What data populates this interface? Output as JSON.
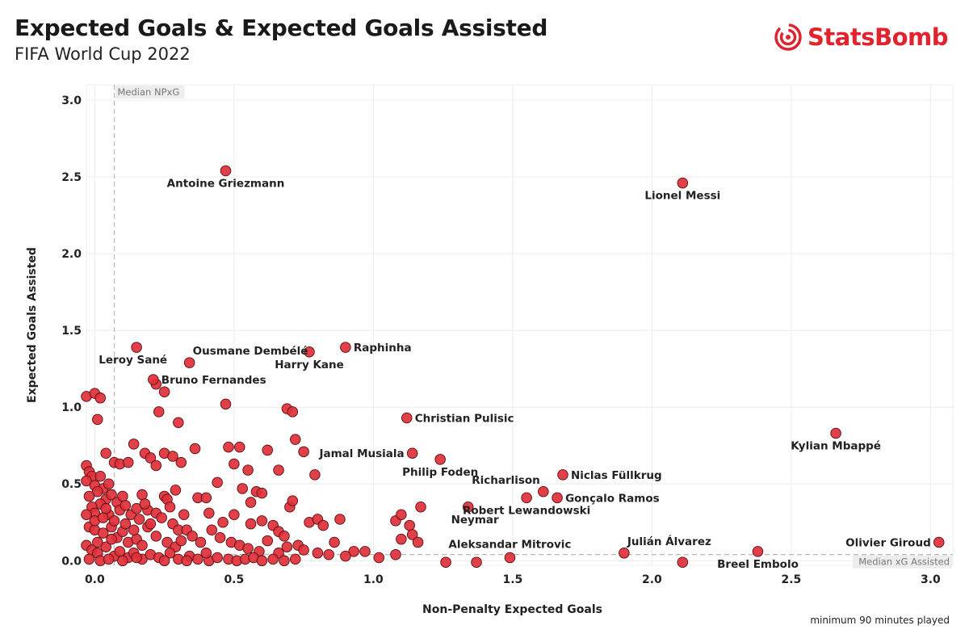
{
  "header": {
    "title": "Expected Goals & Expected Goals Assisted",
    "subtitle": "FIFA World Cup 2022"
  },
  "brand": {
    "name": "StatsBomb",
    "icon": "statsbomb-target-icon",
    "color": "#e1232e"
  },
  "footnote": "minimum 90 minutes played",
  "colors": {
    "point_fill": "#e0303a",
    "point_stroke": "#5a0d12",
    "grid": "#ececec",
    "reference": "#bdbdbd"
  },
  "chart_data": {
    "type": "scatter",
    "title": "Expected Goals & Expected Goals Assisted",
    "subtitle": "FIFA World Cup 2022",
    "xlabel": "Non-Penalty Expected Goals",
    "ylabel": "Expected Goals Assisted",
    "xlim": [
      -0.03,
      3.08
    ],
    "ylim": [
      -0.03,
      3.1
    ],
    "xticks": [
      "0.0",
      "0.5",
      "1.0",
      "1.5",
      "2.0",
      "2.5",
      "3.0"
    ],
    "yticks": [
      "0.0",
      "0.5",
      "1.0",
      "1.5",
      "2.0",
      "2.5",
      "3.0"
    ],
    "grid": true,
    "reference_lines": [
      {
        "axis": "x",
        "value": 0.07,
        "label": "Median NPxG"
      },
      {
        "axis": "y",
        "value": 0.04,
        "label": "Median xG Assisted"
      }
    ],
    "labeled_points": [
      {
        "name": "Antoine Griezmann",
        "x": 0.47,
        "y": 2.54,
        "pos": "below"
      },
      {
        "name": "Lionel Messi",
        "x": 2.11,
        "y": 2.46,
        "pos": "below"
      },
      {
        "name": "Leroy Sané",
        "x": 0.15,
        "y": 1.39,
        "pos": "below-left"
      },
      {
        "name": "Ousmane Dembélé",
        "x": 0.34,
        "y": 1.29,
        "pos": "above-right"
      },
      {
        "name": "Harry Kane",
        "x": 0.77,
        "y": 1.36,
        "pos": "below"
      },
      {
        "name": "Raphinha",
        "x": 0.9,
        "y": 1.39,
        "pos": "right"
      },
      {
        "name": "Bruno Fernandes",
        "x": 0.21,
        "y": 1.18,
        "pos": "right"
      },
      {
        "name": "Christian Pulisic",
        "x": 1.12,
        "y": 0.93,
        "pos": "right"
      },
      {
        "name": "Kylian Mbappé",
        "x": 2.66,
        "y": 0.83,
        "pos": "below"
      },
      {
        "name": "Jamal Musiala",
        "x": 1.14,
        "y": 0.7,
        "pos": "left"
      },
      {
        "name": "Philip Foden",
        "x": 1.24,
        "y": 0.66,
        "pos": "below"
      },
      {
        "name": "Niclas Füllkrug",
        "x": 1.68,
        "y": 0.56,
        "pos": "right"
      },
      {
        "name": "Richarlison",
        "x": 1.61,
        "y": 0.45,
        "pos": "above-left"
      },
      {
        "name": "Gonçalo Ramos",
        "x": 1.66,
        "y": 0.41,
        "pos": "right"
      },
      {
        "name": "Neymar",
        "x": 1.34,
        "y": 0.35,
        "pos": "below-left"
      },
      {
        "name": "Robert Lewandowski",
        "x": 1.55,
        "y": 0.41,
        "pos": "below"
      },
      {
        "name": "Aleksandar Mitrovic",
        "x": 1.49,
        "y": 0.02,
        "pos": "above"
      },
      {
        "name": "Julián Álvarez",
        "x": 1.9,
        "y": 0.05,
        "pos": "above-right"
      },
      {
        "name": "Olivier Giroud",
        "x": 3.03,
        "y": 0.12,
        "pos": "left"
      },
      {
        "name": "Breel Embolo",
        "x": 2.38,
        "y": 0.06,
        "pos": "below"
      }
    ],
    "other_points": [
      [
        2.11,
        -0.01
      ],
      [
        1.37,
        -0.01
      ],
      [
        1.26,
        -0.01
      ],
      [
        -0.03,
        1.07
      ],
      [
        0.0,
        1.09
      ],
      [
        0.02,
        1.06
      ],
      [
        0.01,
        0.92
      ],
      [
        0.22,
        1.15
      ],
      [
        0.25,
        1.1
      ],
      [
        0.23,
        0.97
      ],
      [
        0.3,
        0.9
      ],
      [
        0.47,
        1.02
      ],
      [
        0.69,
        0.99
      ],
      [
        0.71,
        0.97
      ],
      [
        0.14,
        0.76
      ],
      [
        0.18,
        0.7
      ],
      [
        0.2,
        0.67
      ],
      [
        0.25,
        0.7
      ],
      [
        0.28,
        0.68
      ],
      [
        0.31,
        0.64
      ],
      [
        0.07,
        0.64
      ],
      [
        0.09,
        0.63
      ],
      [
        0.12,
        0.64
      ],
      [
        0.04,
        0.7
      ],
      [
        0.22,
        0.62
      ],
      [
        0.36,
        0.73
      ],
      [
        0.48,
        0.74
      ],
      [
        0.52,
        0.74
      ],
      [
        0.5,
        0.63
      ],
      [
        0.55,
        0.59
      ],
      [
        0.62,
        0.72
      ],
      [
        0.66,
        0.59
      ],
      [
        0.72,
        0.79
      ],
      [
        0.75,
        0.71
      ],
      [
        0.79,
        0.56
      ],
      [
        0.44,
        0.51
      ],
      [
        -0.03,
        0.62
      ],
      [
        -0.02,
        0.58
      ],
      [
        -0.01,
        0.55
      ],
      [
        0.02,
        0.55
      ],
      [
        -0.03,
        0.52
      ],
      [
        0.0,
        0.49
      ],
      [
        0.03,
        0.47
      ],
      [
        0.05,
        0.5
      ],
      [
        0.01,
        0.45
      ],
      [
        -0.02,
        0.42
      ],
      [
        0.04,
        0.4
      ],
      [
        0.06,
        0.43
      ],
      [
        0.08,
        0.38
      ],
      [
        0.02,
        0.37
      ],
      [
        -0.01,
        0.35
      ],
      [
        0.0,
        0.31
      ],
      [
        0.05,
        0.3
      ],
      [
        0.09,
        0.33
      ],
      [
        0.11,
        0.36
      ],
      [
        0.13,
        0.3
      ],
      [
        0.17,
        0.43
      ],
      [
        0.15,
        0.34
      ],
      [
        0.19,
        0.33
      ],
      [
        0.22,
        0.31
      ],
      [
        0.25,
        0.42
      ],
      [
        0.26,
        0.4
      ],
      [
        0.29,
        0.46
      ],
      [
        0.27,
        0.35
      ],
      [
        0.24,
        0.28
      ],
      [
        0.28,
        0.24
      ],
      [
        0.3,
        0.2
      ],
      [
        0.33,
        0.2
      ],
      [
        0.37,
        0.41
      ],
      [
        0.4,
        0.41
      ],
      [
        0.41,
        0.31
      ],
      [
        0.46,
        0.25
      ],
      [
        0.5,
        0.3
      ],
      [
        0.53,
        0.47
      ],
      [
        0.56,
        0.38
      ],
      [
        0.58,
        0.45
      ],
      [
        0.6,
        0.44
      ],
      [
        0.56,
        0.24
      ],
      [
        0.6,
        0.26
      ],
      [
        0.64,
        0.23
      ],
      [
        0.66,
        0.19
      ],
      [
        0.68,
        0.16
      ],
      [
        0.7,
        0.35
      ],
      [
        0.71,
        0.39
      ],
      [
        0.73,
        0.1
      ],
      [
        0.77,
        0.25
      ],
      [
        0.8,
        0.27
      ],
      [
        0.82,
        0.23
      ],
      [
        0.86,
        0.12
      ],
      [
        0.88,
        0.27
      ],
      [
        0.93,
        0.06
      ],
      [
        0.97,
        0.06
      ],
      [
        1.08,
        0.26
      ],
      [
        1.1,
        0.3
      ],
      [
        1.13,
        0.23
      ],
      [
        1.14,
        0.17
      ],
      [
        1.16,
        0.12
      ],
      [
        1.17,
        0.35
      ],
      [
        1.1,
        0.14
      ],
      [
        -0.02,
        0.22
      ],
      [
        0.0,
        0.2
      ],
      [
        0.03,
        0.18
      ],
      [
        0.06,
        0.22
      ],
      [
        0.08,
        0.15
      ],
      [
        0.1,
        0.19
      ],
      [
        0.12,
        0.12
      ],
      [
        0.15,
        0.14
      ],
      [
        0.17,
        0.1
      ],
      [
        0.19,
        0.22
      ],
      [
        0.22,
        0.16
      ],
      [
        0.26,
        0.12
      ],
      [
        0.29,
        0.09
      ],
      [
        0.31,
        0.13
      ],
      [
        0.35,
        0.16
      ],
      [
        0.38,
        0.12
      ],
      [
        0.42,
        0.2
      ],
      [
        0.45,
        0.15
      ],
      [
        0.49,
        0.12
      ],
      [
        0.52,
        0.1
      ],
      [
        0.55,
        0.08
      ],
      [
        0.59,
        0.06
      ],
      [
        0.62,
        0.13
      ],
      [
        0.66,
        0.05
      ],
      [
        0.69,
        0.09
      ],
      [
        0.75,
        0.07
      ],
      [
        0.8,
        0.05
      ],
      [
        0.84,
        0.04
      ],
      [
        0.9,
        0.03
      ],
      [
        1.02,
        0.02
      ],
      [
        1.08,
        0.04
      ],
      [
        -0.03,
        0.1
      ],
      [
        -0.01,
        0.07
      ],
      [
        0.01,
        0.05
      ],
      [
        0.04,
        0.09
      ],
      [
        0.07,
        0.03
      ],
      [
        0.09,
        0.06
      ],
      [
        0.12,
        0.02
      ],
      [
        0.14,
        0.05
      ],
      [
        0.17,
        0.01
      ],
      [
        0.2,
        0.04
      ],
      [
        0.23,
        0.02
      ],
      [
        0.27,
        0.05
      ],
      [
        0.3,
        0.01
      ],
      [
        0.34,
        0.03
      ],
      [
        0.37,
        0.01
      ],
      [
        0.41,
        0.0
      ],
      [
        0.44,
        0.02
      ],
      [
        0.48,
        0.01
      ],
      [
        0.51,
        0.0
      ],
      [
        0.54,
        0.01
      ],
      [
        0.57,
        0.02
      ],
      [
        0.6,
        0.0
      ],
      [
        0.64,
        0.01
      ],
      [
        0.68,
        0.0
      ],
      [
        0.72,
        0.01
      ],
      [
        -0.02,
        0.01
      ],
      [
        0.02,
        0.0
      ],
      [
        0.05,
        0.01
      ],
      [
        0.1,
        0.0
      ],
      [
        0.15,
        0.02
      ],
      [
        0.25,
        0.0
      ],
      [
        0.33,
        0.0
      ],
      [
        0.4,
        0.05
      ],
      [
        -0.03,
        0.3
      ],
      [
        0.0,
        0.26
      ],
      [
        0.03,
        0.28
      ],
      [
        0.07,
        0.26
      ],
      [
        0.11,
        0.24
      ],
      [
        0.16,
        0.27
      ],
      [
        0.2,
        0.24
      ],
      [
        0.14,
        0.2
      ],
      [
        0.06,
        0.14
      ],
      [
        0.01,
        0.12
      ],
      [
        0.04,
        0.34
      ],
      [
        0.1,
        0.42
      ],
      [
        0.18,
        0.37
      ],
      [
        0.32,
        0.3
      ]
    ]
  }
}
